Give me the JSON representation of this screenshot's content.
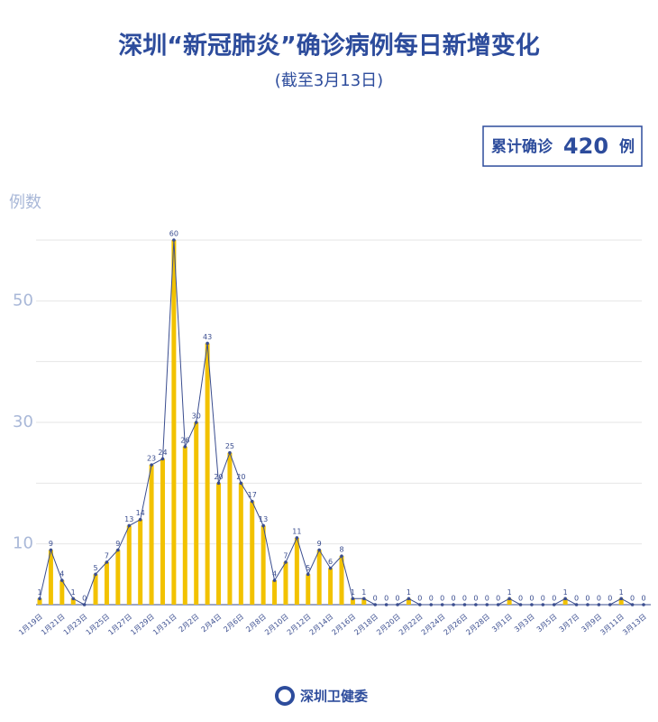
{
  "chart_data": {
    "type": "bar-line",
    "title": "深圳“新冠肺炎”确诊病例每日新增变化",
    "subtitle": "(截至3月13日)",
    "total_label": "累计确诊",
    "total": 420,
    "total_unit": "例",
    "y_label": "例数",
    "source": "深圳卫健委",
    "categories": [
      "1月19日",
      null,
      "1月21日",
      null,
      "1月23日",
      null,
      "1月25日",
      null,
      "1月27日",
      null,
      "1月29日",
      null,
      "1月31日",
      null,
      "2月2日",
      null,
      "2月4日",
      null,
      "2月6日",
      null,
      "2月8日",
      null,
      "2月10日",
      null,
      "2月12日",
      null,
      "2月14日",
      null,
      "2月16日",
      null,
      "2月18日",
      null,
      "2月20日",
      null,
      "2月22日",
      null,
      "2月24日",
      null,
      "2月26日",
      null,
      "2月28日",
      null,
      "3月1日",
      null,
      "3月3日",
      null,
      "3月5日",
      null,
      "3月7日",
      null,
      "3月9日",
      null,
      "3月11日",
      null,
      "3月13日"
    ],
    "values": [
      1,
      9,
      4,
      1,
      0,
      5,
      7,
      9,
      13,
      14,
      23,
      24,
      60,
      26,
      30,
      43,
      20,
      25,
      20,
      17,
      13,
      4,
      7,
      11,
      5,
      9,
      6,
      8,
      1,
      1,
      0,
      0,
      0,
      1,
      0,
      0,
      0,
      0,
      0,
      0,
      0,
      0,
      1,
      0,
      0,
      0,
      0,
      1,
      0,
      0,
      0,
      0,
      1,
      0,
      0
    ],
    "bar_color": "#f2c200",
    "line_color": "#3a4d8f",
    "ylim": [
      0,
      60
    ],
    "yticks": [
      10,
      30,
      50
    ],
    "minor_yticks": [
      20,
      40,
      60
    ],
    "grid": true
  }
}
